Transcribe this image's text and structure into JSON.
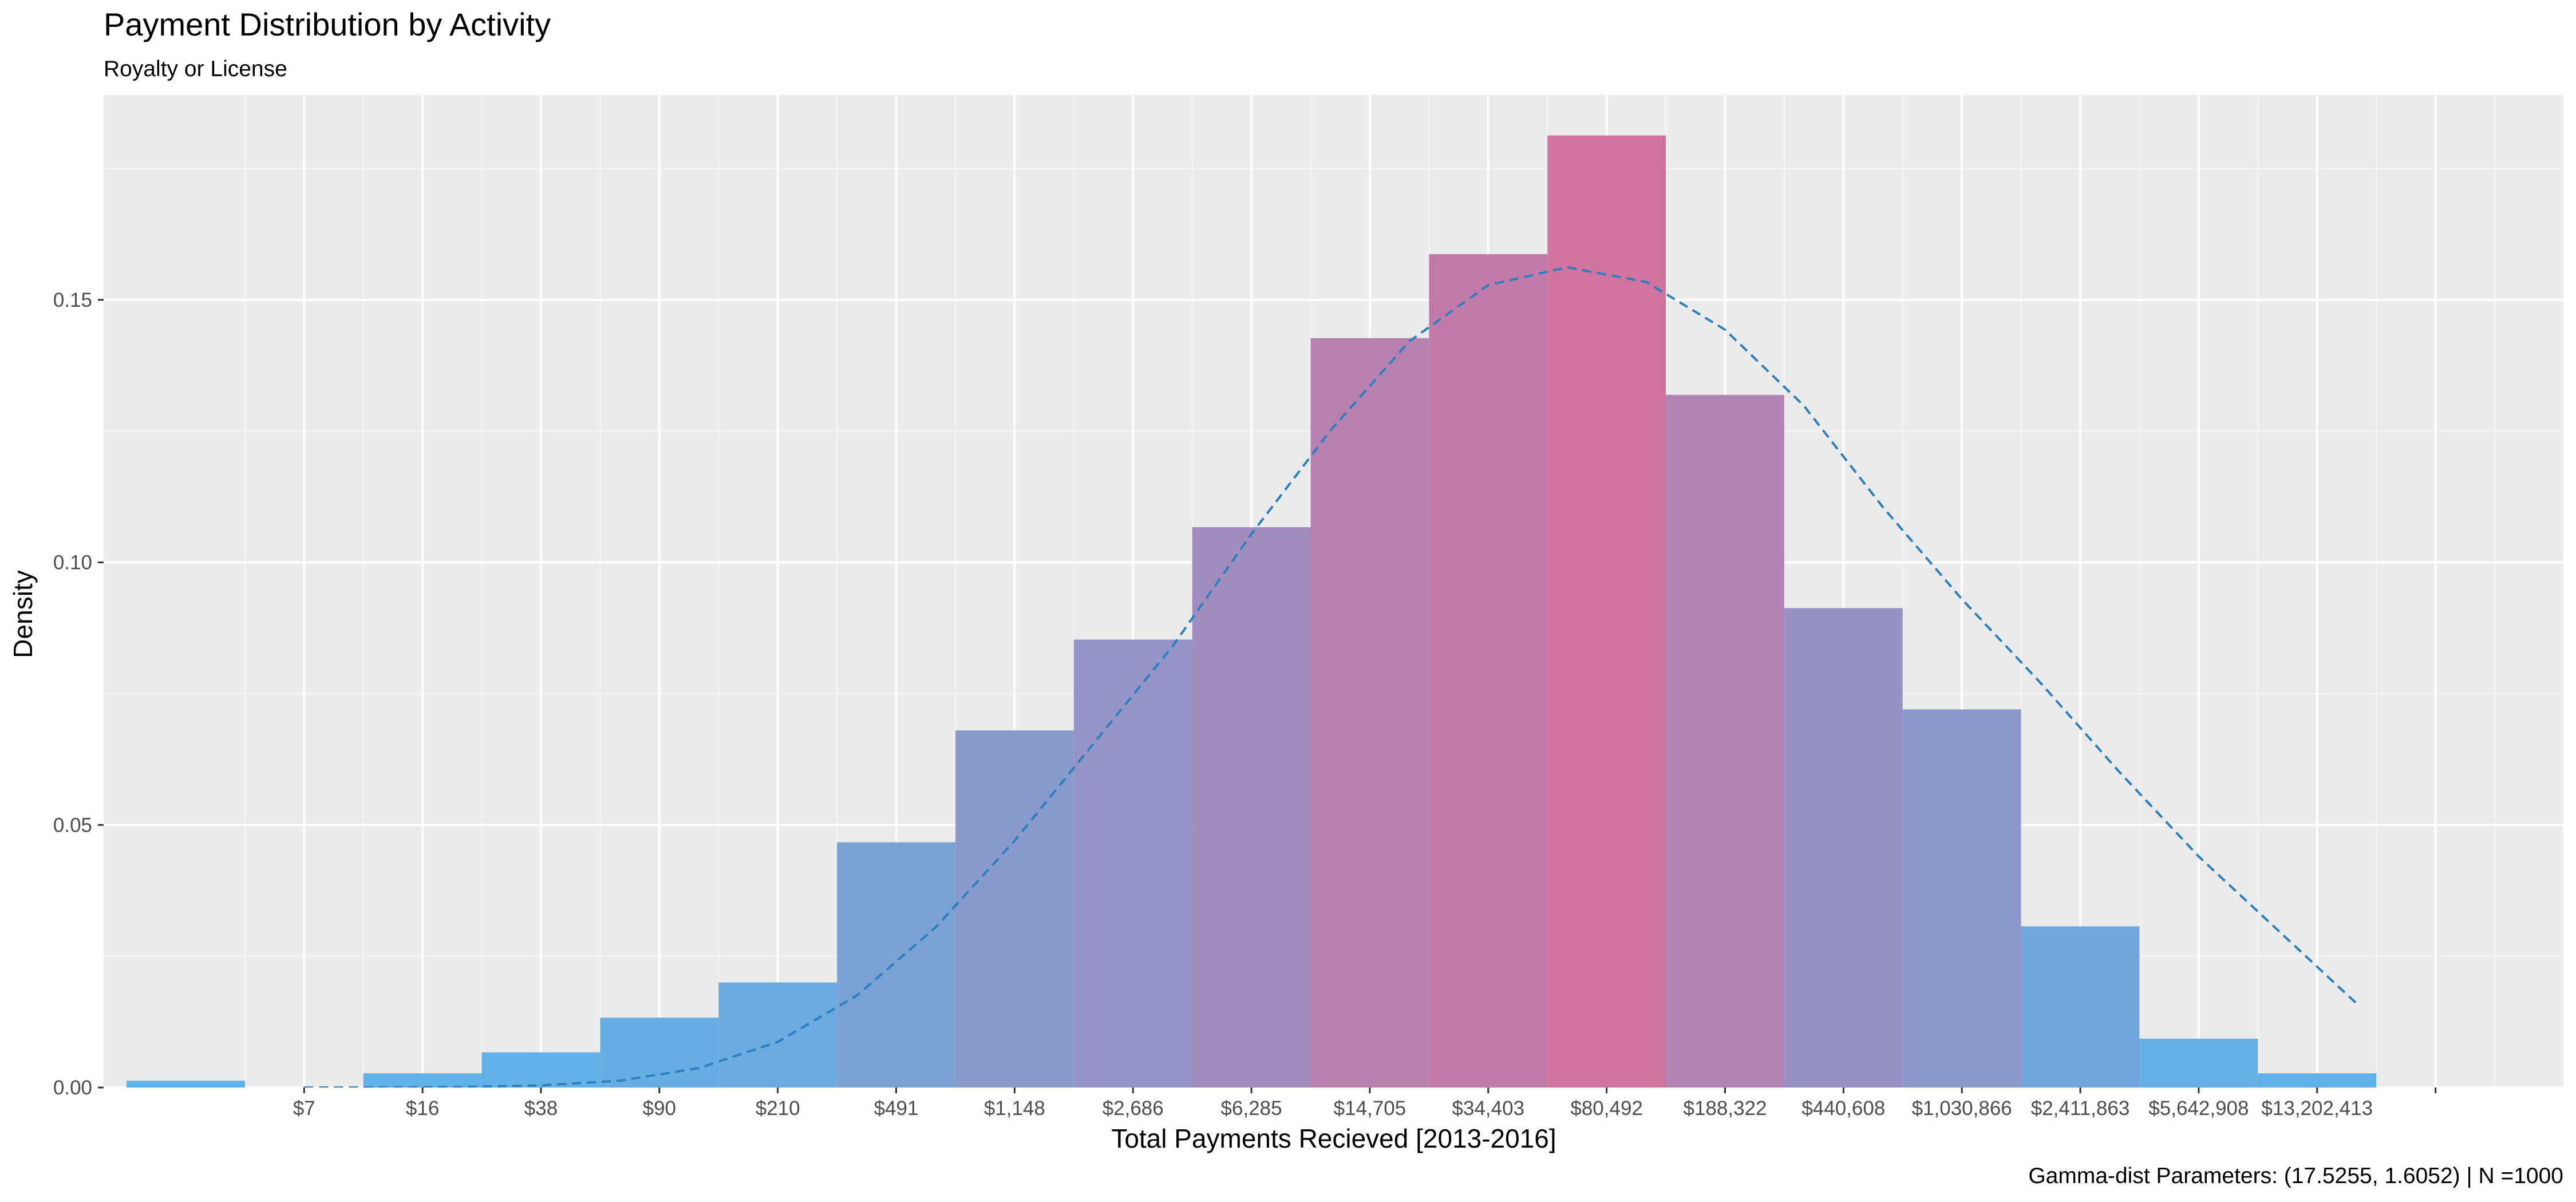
{
  "chart_data": {
    "type": "bar",
    "title": "Payment Distribution by Activity",
    "subtitle": "Royalty or License",
    "caption": "Gamma-dist Parameters: (17.5255, 1.6052) | N =1000",
    "xlabel": "Total Payments Recieved [2013-2016]",
    "ylabel": "Density",
    "x_scale": "log (ln of payment)",
    "xlim": [
      0.73,
      16.31
    ],
    "ylim": [
      0,
      0.189
    ],
    "x_ticks": [
      2,
      2.75,
      3.5,
      4.25,
      5,
      5.75,
      6.5,
      7.25,
      8,
      8.75,
      9.5,
      10.25,
      11,
      11.75,
      12.5,
      13.25,
      14,
      14.75,
      15.5
    ],
    "x_tick_labels": [
      "$7",
      "$16",
      "$38",
      "$90",
      "$210",
      "$491",
      "$1,148",
      "$2,686",
      "$6,285",
      "$14,705",
      "$34,403",
      "$80,492",
      "$188,322",
      "$440,608",
      "$1,030,866",
      "$2,411,863",
      "$5,642,908",
      "$13,202,413",
      ""
    ],
    "y_ticks": [
      0,
      0.05,
      0.1,
      0.15
    ],
    "y_tick_labels": [
      "0.00",
      "0.05",
      "0.10",
      "0.15"
    ],
    "bin_width": 0.75,
    "bin_starts": [
      0.875,
      1.625,
      2.375,
      3.125,
      3.875,
      4.625,
      5.375,
      6.125,
      6.875,
      7.625,
      8.375,
      9.125,
      9.875,
      10.625,
      11.375,
      12.125,
      12.875,
      13.625,
      14.375,
      15.125
    ],
    "values": [
      0.0013,
      0,
      0.0027,
      0.0067,
      0.0133,
      0.02,
      0.0467,
      0.068,
      0.0853,
      0.1067,
      0.1427,
      0.1587,
      0.1813,
      0.1319,
      0.0913,
      0.072,
      0.0307,
      0.0093,
      0.0027,
      0
    ],
    "fill_low": "#5eb2e8",
    "fill_high": "#d0739f",
    "curve": {
      "name": "Gamma-dist Parameters: (17.5255, 1.6052)",
      "color": "#2a7fc1",
      "style": "dashed",
      "x": [
        2.0,
        2.5,
        3.0,
        3.5,
        4.0,
        4.5,
        5.0,
        5.5,
        6.0,
        6.5,
        7.0,
        7.5,
        8.0,
        8.5,
        9.0,
        9.5,
        10.0,
        10.5,
        11.0,
        11.5,
        12.0,
        12.5,
        13.0,
        13.5,
        14.0,
        14.5,
        15.0
      ],
      "y": [
        0.0,
        0.0,
        0.0001,
        0.0004,
        0.0013,
        0.0037,
        0.0087,
        0.0175,
        0.0305,
        0.047,
        0.0655,
        0.084,
        0.1054,
        0.1251,
        0.1421,
        0.1528,
        0.1562,
        0.1534,
        0.1443,
        0.1298,
        0.1105,
        0.093,
        0.077,
        0.06,
        0.044,
        0.03,
        0.016
      ]
    },
    "grid": true,
    "panel_background": "#ebebeb",
    "legend": "none"
  }
}
